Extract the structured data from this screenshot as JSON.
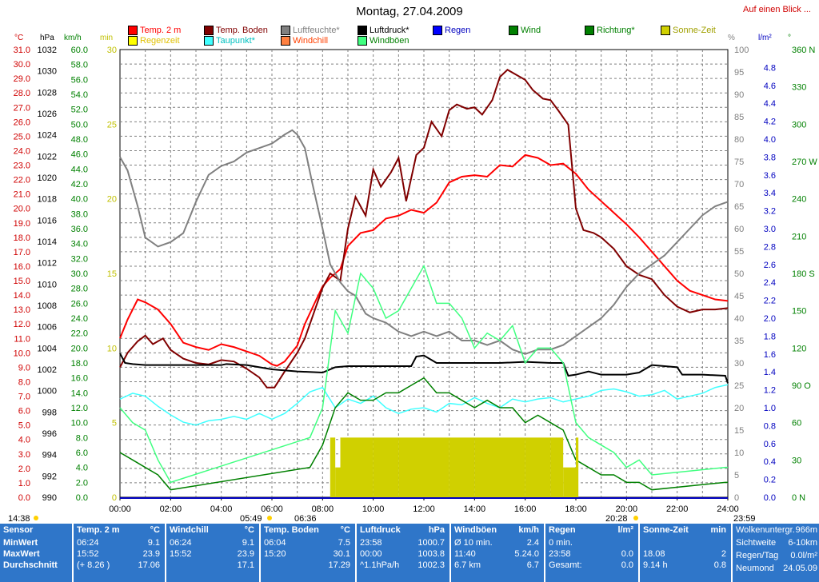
{
  "header": {
    "title": "Montag, 27.04.2009",
    "nav_link": "Auf einen Blick ..."
  },
  "legend": [
    {
      "label": "Temp. 2 m",
      "color": "#ff0000",
      "text_color": "#ff0000"
    },
    {
      "label": "Regenzeit",
      "color": "#ffff00",
      "text_color": "#e0c000"
    },
    {
      "label": "Temp. Boden",
      "color": "#800000",
      "text_color": "#800000"
    },
    {
      "label": "Taupunkt*",
      "color": "#40ffff",
      "text_color": "#00c0c0"
    },
    {
      "label": "Luftfeuchte*",
      "color": "#808080",
      "text_color": "#808080"
    },
    {
      "label": "Windchill",
      "color": "#ff8040",
      "text_color": "#ff4000"
    },
    {
      "label": "Luftdruck*",
      "color": "#000000",
      "text_color": "#000000"
    },
    {
      "label": "Windböen",
      "color": "#40ff80",
      "text_color": "#008000"
    },
    {
      "label": "Regen",
      "color": "#0000ff",
      "text_color": "#0000c0"
    },
    {
      "label": "Wind",
      "color": "#008000",
      "text_color": "#008000"
    },
    {
      "label": "Richtung*",
      "color": "#008000",
      "text_color": "#008000"
    },
    {
      "label": "Sonne-Zeit",
      "color": "#d0d000",
      "text_color": "#a0a000"
    }
  ],
  "axis_units": {
    "temp": "°C",
    "pressure": "hPa",
    "wind": "km/h",
    "minutes": "min",
    "humidity": "%",
    "rain": "l/m²",
    "direction": "°"
  },
  "axes": {
    "temp_ticks": [
      "31.0",
      "30.0",
      "29.0",
      "28.0",
      "27.0",
      "26.0",
      "25.0",
      "24.0",
      "23.0",
      "22.0",
      "21.0",
      "20.0",
      "19.0",
      "18.0",
      "17.0",
      "16.0",
      "15.0",
      "14.0",
      "13.0",
      "12.0",
      "11.0",
      "10.0",
      "9.0",
      "8.0",
      "7.0",
      "6.0",
      "5.0",
      "4.0",
      "3.0",
      "2.0",
      "1.0",
      "0.0"
    ],
    "pressure_ticks": [
      "1032",
      "1030",
      "1028",
      "1026",
      "1024",
      "1022",
      "1020",
      "1018",
      "1016",
      "1014",
      "1012",
      "1010",
      "1008",
      "1006",
      "1004",
      "1002",
      "1000",
      "998",
      "996",
      "994",
      "992",
      "990"
    ],
    "wind_ticks": [
      "60.0",
      "58.0",
      "56.0",
      "54.0",
      "52.0",
      "50.0",
      "48.0",
      "46.0",
      "44.0",
      "42.0",
      "40.0",
      "38.0",
      "36.0",
      "34.0",
      "32.0",
      "30.0",
      "28.0",
      "26.0",
      "24.0",
      "22.0",
      "20.0",
      "18.0",
      "16.0",
      "14.0",
      "12.0",
      "10.0",
      "8.0",
      "6.0",
      "4.0",
      "2.0",
      "0.0"
    ],
    "minutes_ticks": [
      "30",
      "25",
      "20",
      "15",
      "10",
      "5",
      "0"
    ],
    "humidity_ticks": [
      "100",
      "95",
      "90",
      "85",
      "80",
      "75",
      "70",
      "65",
      "60",
      "55",
      "50",
      "45",
      "40",
      "35",
      "30",
      "25",
      "20",
      "15",
      "10",
      "5",
      "0"
    ],
    "rain_ticks": [
      "4.8",
      "4.6",
      "4.4",
      "4.2",
      "4.0",
      "3.8",
      "3.6",
      "3.4",
      "3.2",
      "3.0",
      "2.8",
      "2.6",
      "2.4",
      "2.2",
      "2.0",
      "1.8",
      "1.6",
      "1.4",
      "1.2",
      "1.0",
      "0.8",
      "0.6",
      "0.4",
      "0.2",
      "0.0"
    ],
    "direction_ticks": [
      "360 N",
      "330",
      "300",
      "270 W",
      "240",
      "210",
      "180 S",
      "150",
      "120",
      "90 O",
      "60",
      "30",
      "0 N"
    ],
    "time_ticks": [
      "00:00",
      "02:00",
      "04:00",
      "06:00",
      "08:00",
      "10:00",
      "12:00",
      "14:00",
      "16:00",
      "18:00",
      "20:00",
      "22:00",
      "24:00"
    ]
  },
  "sun_markers": {
    "moon_rise": "14:38",
    "sunrise": "05:49",
    "sunrise_marker": "06:36",
    "sunset": "20:28",
    "moon_set": "23:59"
  },
  "chart_data": {
    "type": "line",
    "title": "Montag, 27.04.2009",
    "x_unit": "hours",
    "xlim": [
      0,
      24
    ],
    "series": [
      {
        "name": "Temp. 2 m",
        "axis": "temp",
        "color": "#ff0000",
        "x": [
          0,
          0.3,
          0.7,
          1.0,
          1.5,
          2.0,
          2.5,
          3.0,
          3.5,
          4.0,
          4.5,
          5.0,
          5.5,
          6.0,
          6.2,
          6.5,
          7.0,
          7.3,
          7.7,
          8.0,
          8.3,
          8.7,
          9.0,
          9.5,
          10.0,
          10.5,
          11.0,
          11.5,
          12.0,
          12.5,
          13.0,
          13.5,
          14.0,
          14.5,
          15.0,
          15.5,
          16.0,
          16.5,
          17.0,
          17.5,
          18.0,
          18.5,
          19.0,
          19.5,
          20.0,
          20.5,
          21.0,
          21.5,
          22.0,
          22.5,
          23.0,
          23.5,
          24.0
        ],
        "y": [
          11.0,
          12.3,
          13.7,
          13.5,
          13.0,
          12.0,
          10.7,
          10.4,
          10.2,
          10.6,
          10.4,
          10.1,
          9.8,
          9.2,
          9.1,
          9.4,
          10.5,
          12.0,
          13.5,
          14.6,
          15.2,
          15.8,
          17.4,
          18.3,
          18.5,
          19.3,
          19.5,
          19.9,
          19.7,
          20.4,
          21.8,
          22.2,
          22.3,
          22.2,
          23.0,
          22.9,
          23.7,
          23.5,
          23.0,
          23.1,
          22.4,
          21.3,
          20.5,
          19.7,
          18.9,
          18.0,
          17.0,
          16.0,
          15.0,
          14.3,
          14.0,
          13.7,
          13.6
        ]
      },
      {
        "name": "Temp. Boden",
        "axis": "temp",
        "color": "#800000",
        "x": [
          0,
          0.3,
          0.7,
          1.0,
          1.3,
          1.7,
          2.0,
          2.5,
          3.0,
          3.5,
          4.0,
          4.5,
          5.0,
          5.5,
          5.8,
          6.1,
          6.5,
          7.0,
          7.3,
          7.7,
          8.0,
          8.3,
          8.7,
          9.0,
          9.3,
          9.7,
          10.0,
          10.3,
          10.7,
          11.0,
          11.3,
          11.7,
          12.0,
          12.3,
          12.7,
          13.0,
          13.3,
          13.7,
          14.0,
          14.3,
          14.7,
          15.0,
          15.3,
          15.7,
          16.0,
          16.3,
          16.7,
          17.0,
          17.3,
          17.7,
          18.0,
          18.3,
          18.7,
          19.0,
          19.5,
          20.0,
          20.5,
          21.0,
          21.5,
          22.0,
          22.5,
          23.0,
          23.5,
          24.0
        ],
        "y": [
          9.0,
          10.0,
          10.8,
          11.2,
          10.6,
          11.0,
          10.2,
          9.6,
          9.3,
          9.2,
          9.5,
          9.4,
          8.9,
          8.3,
          7.6,
          7.6,
          8.7,
          10.0,
          11.0,
          13.0,
          14.5,
          15.5,
          15.0,
          18.6,
          20.8,
          19.5,
          22.7,
          21.5,
          22.5,
          23.5,
          20.5,
          23.7,
          24.2,
          26.0,
          25.0,
          26.8,
          27.2,
          26.9,
          27.0,
          26.5,
          27.5,
          29.1,
          29.6,
          29.2,
          28.9,
          28.2,
          27.6,
          27.5,
          26.8,
          25.8,
          20.0,
          18.5,
          18.3,
          18.0,
          17.2,
          16.0,
          15.4,
          15.1,
          14.0,
          13.2,
          12.8,
          13.0,
          13.0,
          13.1
        ]
      },
      {
        "name": "Luftfeuchte*",
        "axis": "humidity",
        "color": "#808080",
        "x": [
          0,
          0.3,
          0.7,
          1.0,
          1.5,
          2.0,
          2.5,
          3.0,
          3.5,
          4.0,
          4.5,
          5.0,
          5.5,
          6.0,
          6.5,
          6.8,
          7.0,
          7.3,
          7.6,
          8.0,
          8.3,
          8.7,
          9.0,
          9.3,
          9.7,
          10.0,
          10.5,
          11.0,
          11.5,
          12.0,
          12.5,
          13.0,
          13.5,
          14.0,
          14.5,
          15.0,
          15.5,
          16.0,
          16.5,
          17.0,
          17.5,
          18.0,
          18.5,
          19.0,
          19.5,
          20.0,
          20.5,
          21.0,
          21.5,
          22.0,
          22.5,
          23.0,
          23.5,
          24.0
        ],
        "y": [
          76,
          73,
          65,
          58,
          56,
          57,
          59,
          66,
          72,
          74,
          75,
          77,
          78,
          79,
          81,
          82,
          81,
          78,
          70,
          60,
          52,
          48,
          46,
          45,
          41,
          40,
          39,
          37,
          36,
          37,
          36,
          37,
          35,
          35,
          34,
          35,
          33,
          32,
          33,
          33,
          34,
          36,
          38,
          40,
          43,
          47,
          50,
          52,
          54,
          57,
          60,
          63,
          65,
          66
        ]
      },
      {
        "name": "Luftdruck*",
        "axis": "pressure",
        "color": "#000000",
        "x": [
          0,
          0.2,
          0.5,
          1.0,
          2.0,
          3.0,
          4.0,
          4.2,
          5.0,
          6.0,
          7.0,
          8.0,
          8.5,
          9.0,
          10.0,
          11.0,
          11.5,
          11.7,
          12.0,
          12.5,
          13.0,
          14.0,
          15.0,
          16.0,
          17.0,
          17.5,
          17.7,
          18.0,
          18.5,
          19.0,
          20.0,
          20.5,
          21.0,
          22.0,
          22.2,
          23.0,
          23.9,
          24.0
        ],
        "y": [
          1003.5,
          1002.6,
          1002.5,
          1002.4,
          1002.4,
          1002.4,
          1002.4,
          1002.5,
          1002.4,
          1002.0,
          1001.8,
          1001.7,
          1002.2,
          1002.3,
          1002.3,
          1002.3,
          1002.3,
          1003.2,
          1003.3,
          1002.6,
          1002.6,
          1002.6,
          1002.6,
          1002.7,
          1002.6,
          1002.6,
          1001.4,
          1001.5,
          1001.8,
          1001.5,
          1001.5,
          1001.7,
          1002.4,
          1002.2,
          1001.5,
          1001.5,
          1001.4,
          1000.7
        ]
      },
      {
        "name": "Taupunkt*",
        "axis": "temp",
        "color": "#40ffff",
        "x": [
          0,
          0.5,
          1.0,
          1.5,
          2.0,
          2.5,
          3.0,
          3.5,
          4.0,
          4.5,
          5.0,
          5.5,
          6.0,
          6.5,
          7.0,
          7.5,
          8.0,
          8.5,
          9.0,
          9.5,
          10.0,
          10.5,
          11.0,
          11.5,
          12.0,
          12.5,
          13.0,
          13.5,
          14.0,
          14.5,
          15.0,
          15.5,
          16.0,
          16.5,
          17.0,
          17.5,
          18.0,
          18.5,
          19.0,
          19.5,
          20.0,
          20.5,
          21.0,
          21.5,
          22.0,
          22.5,
          23.0,
          23.5,
          24.0
        ],
        "y": [
          6.8,
          7.2,
          7.0,
          6.3,
          5.7,
          5.2,
          5.0,
          5.3,
          5.4,
          5.6,
          5.4,
          5.8,
          5.4,
          5.8,
          6.5,
          7.3,
          7.6,
          6.2,
          6.8,
          6.5,
          7.0,
          6.2,
          5.8,
          6.1,
          6.2,
          5.9,
          6.5,
          6.4,
          6.9,
          6.5,
          6.2,
          6.8,
          6.6,
          6.8,
          6.9,
          6.6,
          6.8,
          7.0,
          7.4,
          7.5,
          7.3,
          7.0,
          7.1,
          7.4,
          6.8,
          7.0,
          7.2,
          7.6,
          7.8
        ]
      },
      {
        "name": "Windböen",
        "axis": "wind",
        "color": "#40ff80",
        "note": "gusts",
        "x": [
          0,
          0.5,
          1.0,
          1.5,
          2.0,
          7.5,
          8.0,
          8.5,
          9.0,
          9.5,
          10.0,
          10.5,
          11.0,
          11.5,
          12.0,
          12.5,
          13.0,
          13.5,
          14.0,
          14.5,
          15.0,
          15.5,
          16.0,
          16.5,
          17.0,
          17.5,
          18.0,
          18.5,
          19.0,
          19.5,
          20.0,
          20.5,
          21.0,
          23.9,
          24.0
        ],
        "y": [
          12,
          10,
          9,
          5,
          2,
          8,
          12,
          25,
          22,
          30,
          28,
          24,
          25,
          28,
          31,
          26,
          26,
          24,
          20,
          22,
          21,
          23,
          18,
          20,
          20,
          18,
          10,
          8,
          7,
          6,
          4,
          5,
          3,
          4,
          4
        ]
      },
      {
        "name": "Wind",
        "axis": "wind",
        "color": "#008000",
        "x": [
          0,
          0.5,
          1.0,
          1.5,
          2.0,
          7.5,
          8.0,
          8.5,
          9.0,
          9.5,
          10.0,
          10.5,
          11.0,
          11.5,
          12.0,
          12.5,
          13.0,
          13.5,
          14.0,
          14.5,
          15.0,
          15.5,
          16.0,
          16.5,
          17.0,
          17.5,
          18.0,
          18.5,
          19.0,
          19.5,
          20.0,
          20.5,
          21.0,
          23.9,
          24.0
        ],
        "y": [
          6,
          5,
          4,
          3,
          1,
          4,
          7,
          12,
          14,
          13,
          13,
          14,
          14,
          15,
          16,
          14,
          14,
          13,
          12,
          13,
          12,
          12,
          10,
          11,
          10,
          9,
          5,
          4,
          3,
          3,
          2,
          2,
          1,
          2,
          2
        ]
      },
      {
        "name": "Sonne-Zeit",
        "axis": "minutes",
        "color": "#d0d000",
        "x": [
          8.3,
          8.5,
          8.7,
          9.0,
          10.0,
          11.0,
          12.0,
          13.0,
          14.0,
          15.0,
          16.0,
          17.0,
          17.5,
          18.0,
          18.1
        ],
        "y": [
          4,
          2,
          4,
          4,
          4,
          4,
          4,
          4,
          4,
          4,
          4,
          4,
          2,
          4,
          0
        ]
      }
    ],
    "ylim_temp": [
      0,
      31
    ],
    "ylim_pressure": [
      990,
      1032
    ],
    "ylim_wind": [
      0,
      60
    ],
    "ylim_minutes": [
      0,
      30
    ],
    "ylim_humidity": [
      0,
      100
    ],
    "ylim_rain": [
      0,
      4.8
    ],
    "ylim_direction": [
      0,
      360
    ],
    "grid": true
  },
  "stats": {
    "sensor": {
      "title": "Sensor",
      "rows": [
        "MinWert",
        "MaxWert",
        "Durchschnitt"
      ]
    },
    "temp2m": {
      "title": "Temp. 2 m",
      "unit": "°C",
      "rows": [
        [
          "06:24",
          "9.1"
        ],
        [
          "15:52",
          "23.9"
        ],
        [
          "(+ 8.26 )",
          "17.06"
        ]
      ]
    },
    "windchill": {
      "title": "Windchill",
      "unit": "°C",
      "rows": [
        [
          "06:24",
          "9.1"
        ],
        [
          "15:52",
          "23.9"
        ],
        [
          "",
          "17.1"
        ]
      ]
    },
    "tempboden": {
      "title": "Temp. Boden",
      "unit": "°C",
      "rows": [
        [
          "06:04",
          "7.5"
        ],
        [
          "15:20",
          "30.1"
        ],
        [
          "",
          "17.29"
        ]
      ]
    },
    "luftdruck": {
      "title": "Luftdruck",
      "unit": "hPa",
      "rows": [
        [
          "23:58",
          "1000.7"
        ],
        [
          "00:00",
          "1003.8"
        ],
        [
          "^1.1hPa/h",
          "1002.3"
        ]
      ]
    },
    "windboeen": {
      "title": "Windböen",
      "unit": "km/h",
      "rows": [
        [
          "Ø 10 min.",
          "2.4"
        ],
        [
          "11:40",
          "5.24.0"
        ],
        [
          "6.7 km",
          "6.7"
        ]
      ]
    },
    "regen": {
      "title": "Regen",
      "unit": "l/m²",
      "rows": [
        [
          "0 min.",
          ""
        ],
        [
          "23:58",
          "0.0"
        ],
        [
          "Gesamt:",
          "0.0"
        ]
      ]
    },
    "sonne": {
      "title": "Sonne-Zeit",
      "unit": "min",
      "rows": [
        [
          "",
          ""
        ],
        [
          "18.08",
          "2"
        ],
        [
          "9.14 h",
          "0.8"
        ]
      ]
    },
    "info": {
      "rows": [
        [
          "Wolkenuntergr.",
          "966m"
        ],
        [
          "Sichtweite",
          "6-10km"
        ],
        [
          "Regen/Tag",
          "0.0l/m²"
        ],
        [
          "Neumond",
          "24.05.09"
        ]
      ]
    }
  }
}
